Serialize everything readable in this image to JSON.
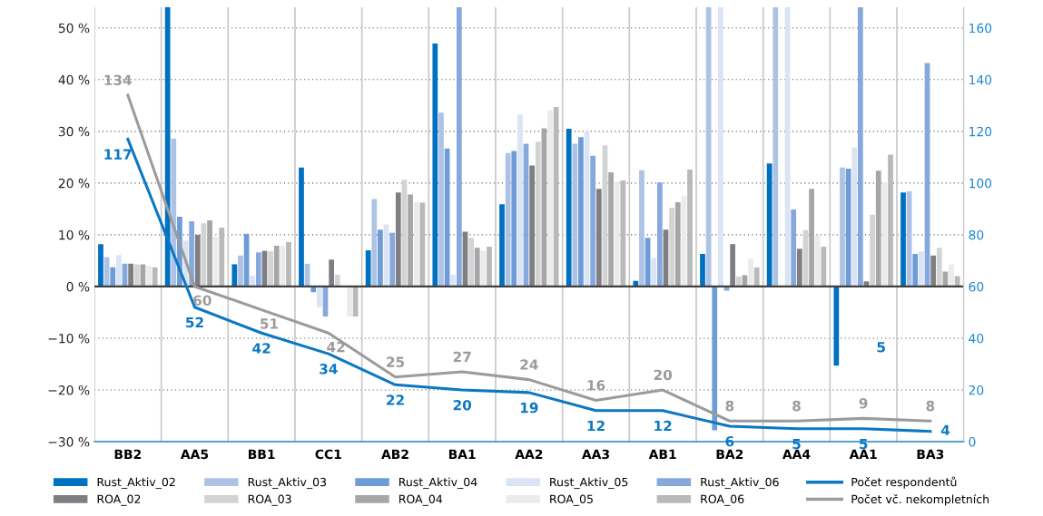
{
  "chart_data": {
    "type": "bar",
    "categories": [
      "BB2",
      "AA5",
      "BB1",
      "CC1",
      "AB2",
      "BA1",
      "AA2",
      "AA3",
      "AB1",
      "BA2",
      "AA4",
      "AA1",
      "BA3"
    ],
    "series": [
      {
        "name": "Rust_Aktiv_02",
        "color": "#0070c0",
        "values": [
          8.2,
          54,
          4.3,
          23.0,
          7.0,
          47.0,
          15.9,
          30.5,
          1.1,
          6.3,
          23.8,
          -15.3,
          18.2
        ]
      },
      {
        "name": "Rust_Aktiv_03",
        "color": "#adc3e6",
        "values": [
          5.7,
          28.6,
          6.0,
          4.4,
          16.9,
          33.6,
          25.8,
          27.6,
          22.5,
          54,
          54,
          23.0,
          18.4
        ]
      },
      {
        "name": "Rust_Aktiv_04",
        "color": "#6e9cd6",
        "values": [
          3.7,
          13.5,
          10.2,
          -1.1,
          11.0,
          26.7,
          26.2,
          28.9,
          9.4,
          -27.8,
          null,
          22.8,
          6.3
        ]
      },
      {
        "name": "Rust_Aktiv_05",
        "color": "#dbe4f5",
        "values": [
          6.1,
          8.9,
          2.1,
          -4.0,
          12.0,
          2.3,
          33.2,
          29.9,
          5.5,
          54,
          54,
          26.9,
          6.8
        ]
      },
      {
        "name": "Rust_Aktiv_06",
        "color": "#86a8dc",
        "values": [
          4.4,
          12.6,
          6.6,
          -5.8,
          10.4,
          54,
          27.6,
          25.3,
          20.1,
          -0.8,
          14.9,
          54,
          43.2
        ]
      },
      {
        "name": "ROA_02",
        "color": "#7f7f83",
        "values": [
          4.4,
          10.0,
          6.9,
          5.2,
          18.2,
          10.6,
          23.4,
          18.9,
          11.0,
          8.2,
          7.3,
          1.0,
          6.0
        ]
      },
      {
        "name": "ROA_03",
        "color": "#d3d3d3",
        "values": [
          4.3,
          12.2,
          6.8,
          2.3,
          20.7,
          9.4,
          28.0,
          27.3,
          15.2,
          1.9,
          10.9,
          13.9,
          7.5
        ]
      },
      {
        "name": "ROA_04",
        "color": "#a6a6a8",
        "values": [
          4.3,
          12.8,
          7.9,
          null,
          17.8,
          7.5,
          30.6,
          22.1,
          16.3,
          2.2,
          18.9,
          22.4,
          2.9
        ]
      },
      {
        "name": "ROA_05",
        "color": "#ebebeb",
        "values": [
          4.0,
          9.6,
          7.8,
          -5.8,
          16.4,
          6.9,
          34.1,
          20.3,
          17.5,
          5.4,
          9.8,
          20.1,
          4.3
        ]
      },
      {
        "name": "ROA_06",
        "color": "#b9b9b9",
        "values": [
          3.7,
          11.4,
          8.6,
          -5.8,
          16.2,
          7.7,
          34.7,
          20.5,
          22.6,
          3.7,
          7.7,
          25.5,
          2.0
        ]
      },
      {
        "name": "Počet respondentů",
        "type": "line",
        "axis": "y2",
        "color": "#0a78c3",
        "values": [
          117,
          52,
          42,
          34,
          22,
          20,
          19,
          12,
          12,
          6,
          5,
          5,
          4
        ],
        "value_labels": [
          "117",
          "52",
          "42",
          "34",
          "22",
          "20",
          "19",
          "12",
          "12",
          "6",
          "5",
          "5",
          "4"
        ]
      },
      {
        "name": "Počet vč. nekompletních",
        "type": "line",
        "axis": "y2",
        "color": "#9b9b9b",
        "values": [
          134,
          60,
          51,
          42,
          25,
          27,
          24,
          16,
          20,
          8,
          8,
          9,
          8
        ],
        "value_labels": [
          "134",
          "60",
          "51",
          "42",
          "25",
          "27",
          "24",
          "16",
          "20",
          "8",
          "8",
          "9",
          "8"
        ]
      }
    ],
    "ylim": [
      -30,
      54
    ],
    "yticks": [
      {
        "value": -30,
        "label": "−30 %"
      },
      {
        "value": -20,
        "label": "−20 %"
      },
      {
        "value": -10,
        "label": "−10 %"
      },
      {
        "value": 0,
        "label": "0 %"
      },
      {
        "value": 10,
        "label": "10 %"
      },
      {
        "value": 20,
        "label": "20 %"
      },
      {
        "value": 30,
        "label": "30 %"
      },
      {
        "value": 40,
        "label": "40 %"
      },
      {
        "value": 50,
        "label": "50 %"
      }
    ],
    "y2lim": [
      0,
      168
    ],
    "y2ticks": [
      0,
      20,
      40,
      60,
      80,
      100,
      120,
      140,
      160
    ],
    "ref_lines": [
      {
        "axis": "y",
        "value": 0,
        "color": "#404040"
      }
    ],
    "annotations": [
      "5"
    ],
    "grid": "y",
    "legend": "bottom"
  }
}
